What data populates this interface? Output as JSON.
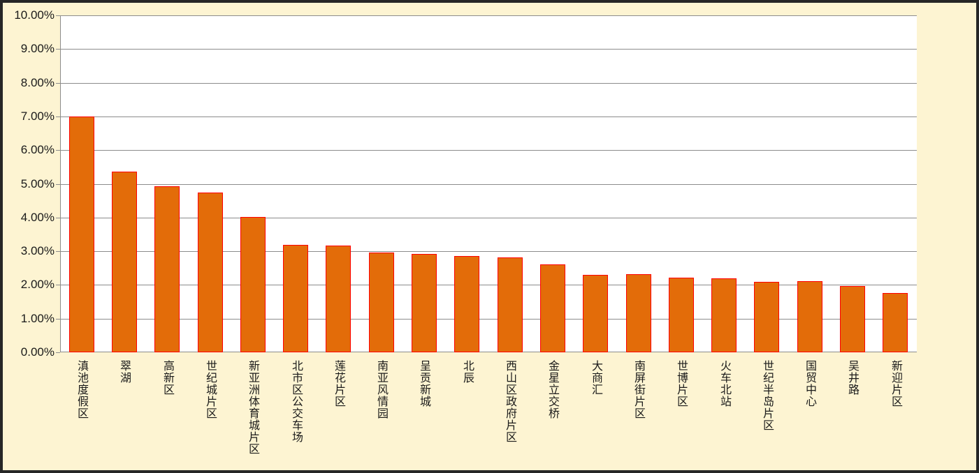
{
  "chart_data": {
    "type": "bar",
    "title": "",
    "xlabel": "",
    "ylabel": "",
    "categories": [
      "滇池度假区",
      "翠湖",
      "高新区",
      "世纪城片区",
      "新亚洲体育城片区",
      "北市区公交车场",
      "莲花片区",
      "南亚风情园",
      "呈贡新城",
      "北辰",
      "西山区政府片区",
      "金星立交桥",
      "大商汇",
      "南屏街片区",
      "世博片区",
      "火车北站",
      "世纪半岛片区",
      "国贸中心",
      "吴井路",
      "新迎片区"
    ],
    "values": [
      7.0,
      5.37,
      4.92,
      4.74,
      4.02,
      3.19,
      3.17,
      2.97,
      2.92,
      2.86,
      2.82,
      2.61,
      2.3,
      2.31,
      2.21,
      2.19,
      2.1,
      2.12,
      1.97,
      1.76
    ],
    "value_unit": "percent",
    "ylim": [
      0,
      10
    ],
    "ytick_step": 1,
    "ytick_labels": [
      "0.00%",
      "1.00%",
      "2.00%",
      "3.00%",
      "4.00%",
      "5.00%",
      "6.00%",
      "7.00%",
      "8.00%",
      "9.00%",
      "10.00%"
    ],
    "grid": true,
    "legend": "none",
    "category_label_orientation": "vertical-stacked",
    "colors": {
      "bar_fill": "#E36C09",
      "bar_border": "#FF0000",
      "chart_background": "#FDF4D2",
      "plot_background": "#FFFFFF",
      "gridline": "#8C8C8C",
      "text": "#1A1A1A",
      "frame_border": "#262626"
    }
  }
}
